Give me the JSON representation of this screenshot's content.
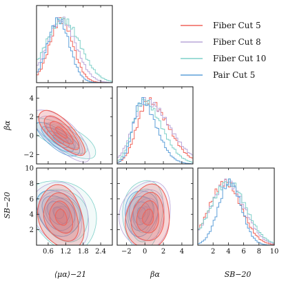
{
  "figure": {
    "type": "corner"
  },
  "legend": {
    "placement": "top-right",
    "entries": [
      {
        "name": "Fiber Cut 5",
        "color": "#f0645a"
      },
      {
        "name": "Fiber Cut 8",
        "color": "#b9a6d9"
      },
      {
        "name": "Fiber Cut 10",
        "color": "#7fd0c9"
      },
      {
        "name": "Pair Cut 5",
        "color": "#5d9fd9"
      }
    ]
  },
  "chart_data": {
    "type": "corner",
    "parameters": [
      {
        "key": "mu",
        "label": "⟨μα⟩−21",
        "range": [
          0.2,
          2.8
        ],
        "ticks": [
          "0.6",
          "1.2",
          "1.8",
          "2.4"
        ],
        "tick_values": [
          0.6,
          1.2,
          1.8,
          2.4
        ]
      },
      {
        "key": "beta",
        "label": "βα",
        "range": [
          -3,
          5.2
        ],
        "ticks": [
          "−2",
          "0",
          "2",
          "4"
        ],
        "tick_values": [
          -2,
          0,
          2,
          4
        ]
      },
      {
        "key": "sb",
        "label": "SB−20",
        "range": [
          0,
          10
        ],
        "ticks": [
          "2",
          "4",
          "6",
          "8",
          "10"
        ],
        "tick_values": [
          2,
          4,
          6,
          8,
          10
        ]
      }
    ],
    "series": [
      {
        "name": "Fiber Cut 5",
        "mu": {
          "mean": 1.05,
          "sd": 0.4
        },
        "beta": {
          "mean": 0.35,
          "sd": 1.2
        },
        "sb": {
          "mean": 3.6,
          "sd": 2.1
        }
      },
      {
        "name": "Fiber Cut 8",
        "mu": {
          "mean": 1.05,
          "sd": 0.5
        },
        "beta": {
          "mean": 0.1,
          "sd": 1.4
        },
        "sb": {
          "mean": 3.9,
          "sd": 2.2
        }
      },
      {
        "name": "Fiber Cut 10",
        "mu": {
          "mean": 1.1,
          "sd": 0.6
        },
        "beta": {
          "mean": -0.2,
          "sd": 1.1
        },
        "sb": {
          "mean": 4.0,
          "sd": 2.3
        }
      },
      {
        "name": "Pair Cut 5",
        "mu": {
          "mean": 0.95,
          "sd": 0.38
        },
        "beta": {
          "mean": -0.4,
          "sd": 0.9
        },
        "sb": {
          "mean": 4.2,
          "sd": 1.5
        }
      }
    ],
    "correlations": {
      "mu_beta": -0.75,
      "mu_sb": -0.25,
      "beta_sb": 0.1
    },
    "grid": false
  }
}
